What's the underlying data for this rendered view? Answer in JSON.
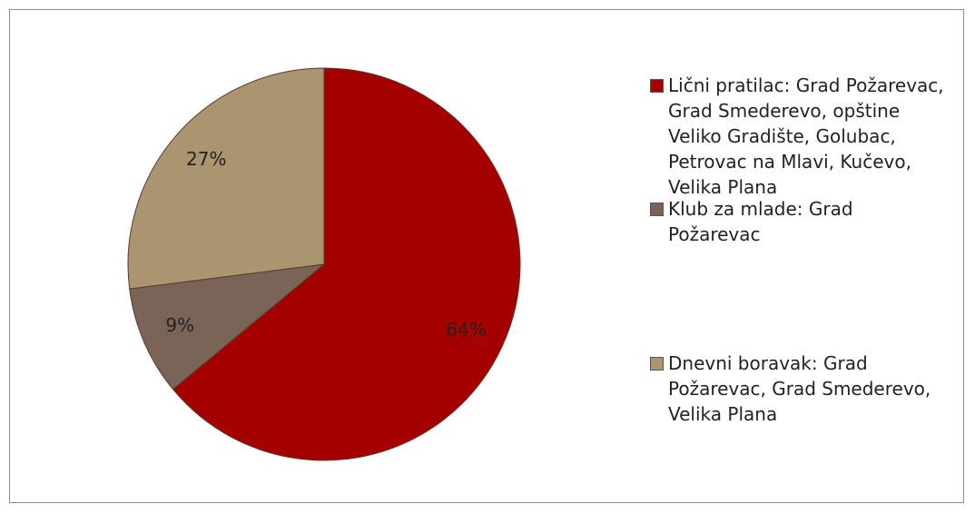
{
  "chart_data": {
    "type": "pie",
    "categories": [
      "Lični pratilac: Grad Požarevac, Grad Smederevo, opštine Veliko Gradište, Golubac, Petrovac na Mlavi, Kučevo, Velika Plana",
      "Klub za mlade: Grad Požarevac",
      "Dnevni boravak: Grad Požarevac, Grad Smederevo, Velika Plana"
    ],
    "values": [
      64,
      9,
      27
    ],
    "value_labels": [
      "64%",
      "9%",
      "27%"
    ],
    "colors": [
      "#a50000",
      "#7a6357",
      "#ab9470"
    ],
    "legend": "right"
  }
}
